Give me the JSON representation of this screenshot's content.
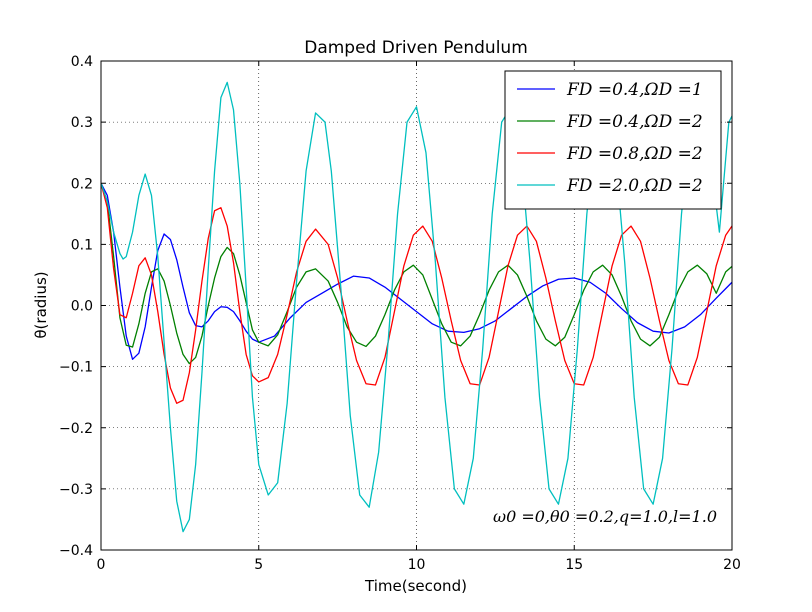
{
  "chart_data": {
    "type": "line",
    "title": "Damped Driven Pendulum",
    "xlabel": "Time(second)",
    "ylabel": "θ(radius)",
    "xlim": [
      0,
      20
    ],
    "ylim": [
      -0.4,
      0.4
    ],
    "xticks": [
      0,
      5,
      10,
      15,
      20
    ],
    "xtick_labels": [
      "0",
      "5",
      "10",
      "15",
      "20"
    ],
    "yticks": [
      -0.4,
      -0.3,
      -0.2,
      -0.1,
      0.0,
      0.1,
      0.2,
      0.3,
      0.4
    ],
    "ytick_labels": [
      "−0.4",
      "−0.3",
      "−0.2",
      "−0.1",
      "0.0",
      "0.1",
      "0.2",
      "0.3",
      "0.4"
    ],
    "grid": true,
    "legend_position": "top-right",
    "annotation": "ω0 =0,θ0 =0.2,q=1.0,l=1.0",
    "series": [
      {
        "name": "FD =0.4,ΩD =1",
        "color": "#0000ff",
        "x": [
          0,
          0.2,
          0.4,
          0.6,
          0.8,
          1.0,
          1.2,
          1.4,
          1.6,
          1.8,
          2.0,
          2.2,
          2.4,
          2.6,
          2.8,
          3.0,
          3.2,
          3.4,
          3.6,
          3.8,
          4.0,
          4.2,
          4.4,
          4.6,
          4.8,
          5.0,
          5.5,
          6.0,
          6.5,
          7.0,
          7.5,
          8.0,
          8.5,
          9.0,
          9.5,
          10.0,
          10.5,
          11.0,
          11.5,
          12.0,
          12.5,
          13.0,
          13.5,
          14.0,
          14.5,
          15.0,
          15.5,
          16.0,
          16.5,
          17.0,
          17.5,
          18.0,
          18.5,
          19.0,
          19.5,
          20.0
        ],
        "y": [
          0.2,
          0.18,
          0.12,
          0.03,
          -0.05,
          -0.088,
          -0.078,
          -0.035,
          0.03,
          0.09,
          0.117,
          0.108,
          0.075,
          0.03,
          -0.012,
          -0.033,
          -0.035,
          -0.025,
          -0.01,
          -0.002,
          -0.003,
          -0.01,
          -0.025,
          -0.042,
          -0.055,
          -0.06,
          -0.05,
          -0.02,
          0.005,
          0.02,
          0.035,
          0.048,
          0.045,
          0.03,
          0.01,
          -0.01,
          -0.03,
          -0.042,
          -0.044,
          -0.038,
          -0.025,
          -0.005,
          0.015,
          0.032,
          0.043,
          0.045,
          0.038,
          0.02,
          -0.005,
          -0.028,
          -0.042,
          -0.045,
          -0.035,
          -0.015,
          0.012,
          0.038
        ]
      },
      {
        "name": "FD =0.4,ΩD =2",
        "color": "#008000",
        "x": [
          0,
          0.2,
          0.4,
          0.6,
          0.8,
          1.0,
          1.2,
          1.4,
          1.6,
          1.8,
          2.0,
          2.2,
          2.4,
          2.6,
          2.8,
          3.0,
          3.2,
          3.4,
          3.6,
          3.8,
          4.0,
          4.2,
          4.4,
          4.6,
          4.8,
          5.0,
          5.3,
          5.6,
          5.9,
          6.2,
          6.5,
          6.8,
          7.2,
          7.5,
          7.8,
          8.1,
          8.4,
          8.7,
          9.0,
          9.3,
          9.6,
          9.9,
          10.2,
          10.5,
          10.8,
          11.1,
          11.4,
          11.7,
          12.0,
          12.3,
          12.6,
          12.9,
          13.2,
          13.5,
          13.8,
          14.1,
          14.4,
          14.7,
          15.0,
          15.3,
          15.6,
          15.9,
          16.2,
          16.5,
          16.8,
          17.1,
          17.4,
          17.7,
          18.0,
          18.3,
          18.6,
          18.9,
          19.2,
          19.5,
          19.8,
          20.0
        ],
        "y": [
          0.2,
          0.17,
          0.08,
          -0.02,
          -0.065,
          -0.068,
          -0.03,
          0.02,
          0.055,
          0.06,
          0.04,
          0.0,
          -0.045,
          -0.08,
          -0.095,
          -0.085,
          -0.05,
          0.0,
          0.045,
          0.08,
          0.095,
          0.085,
          0.05,
          0.005,
          -0.04,
          -0.06,
          -0.066,
          -0.048,
          -0.01,
          0.03,
          0.055,
          0.06,
          0.04,
          0.005,
          -0.035,
          -0.06,
          -0.067,
          -0.05,
          -0.015,
          0.025,
          0.055,
          0.066,
          0.05,
          0.01,
          -0.03,
          -0.06,
          -0.066,
          -0.05,
          -0.015,
          0.025,
          0.055,
          0.066,
          0.05,
          0.015,
          -0.025,
          -0.055,
          -0.066,
          -0.052,
          -0.015,
          0.025,
          0.055,
          0.066,
          0.05,
          0.015,
          -0.025,
          -0.055,
          -0.066,
          -0.052,
          -0.015,
          0.025,
          0.055,
          0.066,
          0.052,
          0.02,
          0.055,
          0.064
        ]
      },
      {
        "name": "FD =0.8,ΩD =2",
        "color": "#ff0000",
        "x": [
          0,
          0.2,
          0.4,
          0.6,
          0.8,
          1.0,
          1.2,
          1.4,
          1.6,
          1.8,
          2.0,
          2.2,
          2.4,
          2.6,
          2.8,
          3.0,
          3.2,
          3.4,
          3.6,
          3.8,
          4.0,
          4.2,
          4.4,
          4.6,
          4.8,
          5.0,
          5.3,
          5.6,
          5.9,
          6.2,
          6.5,
          6.8,
          7.2,
          7.5,
          7.8,
          8.1,
          8.4,
          8.7,
          9.0,
          9.3,
          9.6,
          9.9,
          10.2,
          10.5,
          10.8,
          11.1,
          11.4,
          11.7,
          12.0,
          12.3,
          12.6,
          12.9,
          13.2,
          13.5,
          13.8,
          14.1,
          14.4,
          14.7,
          15.0,
          15.3,
          15.6,
          15.9,
          16.2,
          16.5,
          16.8,
          17.1,
          17.4,
          17.7,
          18.0,
          18.3,
          18.6,
          18.9,
          19.2,
          19.5,
          19.8,
          20.0
        ],
        "y": [
          0.2,
          0.16,
          0.06,
          -0.015,
          -0.02,
          0.02,
          0.065,
          0.078,
          0.05,
          -0.01,
          -0.08,
          -0.135,
          -0.16,
          -0.155,
          -0.11,
          -0.04,
          0.04,
          0.11,
          0.155,
          0.16,
          0.13,
          0.07,
          -0.01,
          -0.08,
          -0.115,
          -0.125,
          -0.118,
          -0.08,
          -0.015,
          0.055,
          0.105,
          0.125,
          0.1,
          0.045,
          -0.025,
          -0.09,
          -0.128,
          -0.13,
          -0.085,
          -0.01,
          0.065,
          0.115,
          0.13,
          0.105,
          0.045,
          -0.025,
          -0.09,
          -0.128,
          -0.13,
          -0.085,
          -0.01,
          0.065,
          0.115,
          0.13,
          0.105,
          0.045,
          -0.025,
          -0.09,
          -0.128,
          -0.13,
          -0.085,
          -0.01,
          0.065,
          0.115,
          0.13,
          0.105,
          0.045,
          -0.025,
          -0.09,
          -0.128,
          -0.13,
          -0.085,
          -0.01,
          0.065,
          0.115,
          0.13
        ]
      },
      {
        "name": "FD =2.0,ΩD =2",
        "color": "#00bfbf",
        "x": [
          0,
          0.2,
          0.4,
          0.6,
          0.7,
          0.8,
          1.0,
          1.2,
          1.4,
          1.6,
          1.8,
          2.0,
          2.2,
          2.4,
          2.6,
          2.8,
          3.0,
          3.2,
          3.4,
          3.6,
          3.8,
          4.0,
          4.2,
          4.4,
          4.6,
          4.8,
          5.0,
          5.3,
          5.6,
          5.9,
          6.2,
          6.5,
          6.8,
          7.1,
          7.3,
          7.6,
          7.9,
          8.2,
          8.5,
          8.8,
          9.1,
          9.4,
          9.7,
          10.0,
          10.3,
          10.6,
          10.9,
          11.2,
          11.5,
          11.8,
          12.1,
          12.4,
          12.7,
          13.0,
          13.3,
          13.6,
          13.9,
          14.2,
          14.5,
          14.8,
          15.1,
          15.4,
          15.7,
          16.0,
          16.3,
          16.6,
          16.9,
          17.2,
          17.5,
          17.8,
          18.1,
          18.4,
          18.7,
          19.0,
          19.3,
          19.6,
          19.9,
          20.0
        ],
        "y": [
          0.2,
          0.17,
          0.12,
          0.085,
          0.076,
          0.08,
          0.12,
          0.18,
          0.215,
          0.18,
          0.08,
          -0.06,
          -0.2,
          -0.32,
          -0.37,
          -0.35,
          -0.26,
          -0.11,
          0.06,
          0.22,
          0.34,
          0.365,
          0.32,
          0.2,
          0.03,
          -0.15,
          -0.26,
          -0.31,
          -0.29,
          -0.16,
          0.04,
          0.22,
          0.315,
          0.3,
          0.22,
          0.03,
          -0.18,
          -0.31,
          -0.33,
          -0.24,
          -0.06,
          0.15,
          0.3,
          0.325,
          0.25,
          0.07,
          -0.15,
          -0.3,
          -0.325,
          -0.25,
          -0.07,
          0.15,
          0.3,
          0.325,
          0.25,
          0.07,
          -0.15,
          -0.3,
          -0.325,
          -0.25,
          -0.07,
          0.15,
          0.3,
          0.325,
          0.25,
          0.07,
          -0.15,
          -0.3,
          -0.325,
          -0.25,
          -0.07,
          0.15,
          0.3,
          0.325,
          0.25,
          0.12,
          0.3,
          0.31
        ]
      }
    ]
  }
}
